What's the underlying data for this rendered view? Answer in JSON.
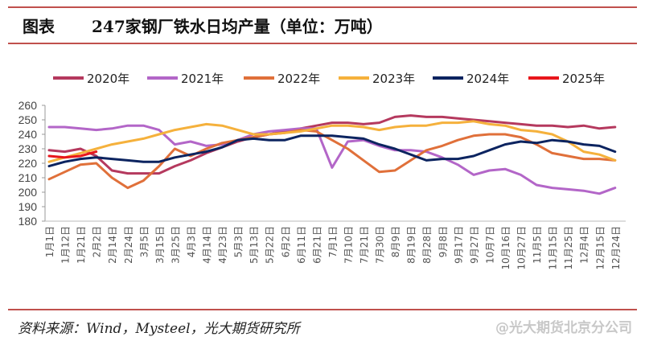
{
  "header": {
    "label": "图表",
    "title": "247家钢厂铁水日均产量（单位：万吨）"
  },
  "footer": {
    "source": "资料来源：Wind，Mysteel，光大期货研究所",
    "watermark": "@光大期货北京分公司"
  },
  "chart_data": {
    "type": "line",
    "title": "247家钢厂铁水日均产量（单位：万吨）",
    "legend_position": "top",
    "grid": false,
    "ylim": [
      180,
      260
    ],
    "yticks": [
      180,
      190,
      200,
      210,
      220,
      230,
      240,
      250,
      260
    ],
    "categories": [
      "1月1日",
      "1月12日",
      "1月21日",
      "2月2日",
      "2月14日",
      "2月24日",
      "3月5日",
      "3月15日",
      "3月25日",
      "4月3日",
      "4月14日",
      "4月23日",
      "5月3日",
      "5月13日",
      "5月22日",
      "6月2日",
      "6月11日",
      "6月21日",
      "7月1日",
      "7月10日",
      "7月21日",
      "7月30日",
      "8月9日",
      "8月19日",
      "8月28日",
      "9月8日",
      "9月17日",
      "9月27日",
      "10月7日",
      "10月16日",
      "10月27日",
      "11月5日",
      "11月15日",
      "11月25日",
      "12月4日",
      "12月15日",
      "12月24日"
    ],
    "series": [
      {
        "name": "2020年",
        "color": "#b5395e",
        "values": [
          229,
          228,
          230,
          225,
          215,
          213,
          213,
          213,
          218,
          222,
          227,
          231,
          235,
          238,
          240,
          242,
          244,
          246,
          248,
          248,
          247,
          248,
          252,
          253,
          252,
          252,
          251,
          250,
          249,
          248,
          247,
          246,
          246,
          245,
          246,
          244,
          245
        ]
      },
      {
        "name": "2021年",
        "color": "#b366c8",
        "values": [
          245,
          245,
          244,
          243,
          244,
          246,
          246,
          243,
          233,
          235,
          232,
          233,
          236,
          240,
          242,
          243,
          244,
          244,
          217,
          235,
          236,
          232,
          229,
          229,
          228,
          224,
          219,
          212,
          215,
          216,
          212,
          205,
          203,
          202,
          201,
          199,
          203
        ]
      },
      {
        "name": "2022年",
        "color": "#e0703a",
        "values": [
          209,
          214,
          219,
          220,
          210,
          203,
          208,
          218,
          230,
          225,
          230,
          234,
          236,
          238,
          240,
          241,
          243,
          242,
          236,
          230,
          222,
          214,
          215,
          222,
          229,
          232,
          236,
          239,
          240,
          240,
          238,
          233,
          227,
          225,
          223,
          223,
          222
        ]
      },
      {
        "name": "2023年",
        "color": "#f5b13c",
        "values": [
          221,
          224,
          227,
          230,
          233,
          235,
          237,
          240,
          243,
          245,
          247,
          246,
          243,
          240,
          240,
          241,
          242,
          244,
          246,
          246,
          245,
          243,
          245,
          246,
          246,
          248,
          248,
          249,
          247,
          246,
          243,
          242,
          240,
          235,
          228,
          226,
          222
        ]
      },
      {
        "name": "2024年",
        "color": "#0c2460",
        "values": [
          218,
          221,
          223,
          224,
          223,
          222,
          221,
          221,
          224,
          226,
          228,
          231,
          236,
          237,
          236,
          236,
          239,
          239,
          239,
          238,
          237,
          233,
          230,
          226,
          222,
          223,
          223,
          225,
          229,
          233,
          235,
          234,
          236,
          235,
          233,
          232,
          228
        ]
      },
      {
        "name": "2025年",
        "color": "#e8161b",
        "values": [
          225,
          224,
          225,
          228,
          null,
          null,
          null,
          null,
          null,
          null,
          null,
          null,
          null,
          null,
          null,
          null,
          null,
          null,
          null,
          null,
          null,
          null,
          null,
          null,
          null,
          null,
          null,
          null,
          null,
          null,
          null,
          null,
          null,
          null,
          null,
          null,
          null
        ]
      }
    ]
  }
}
